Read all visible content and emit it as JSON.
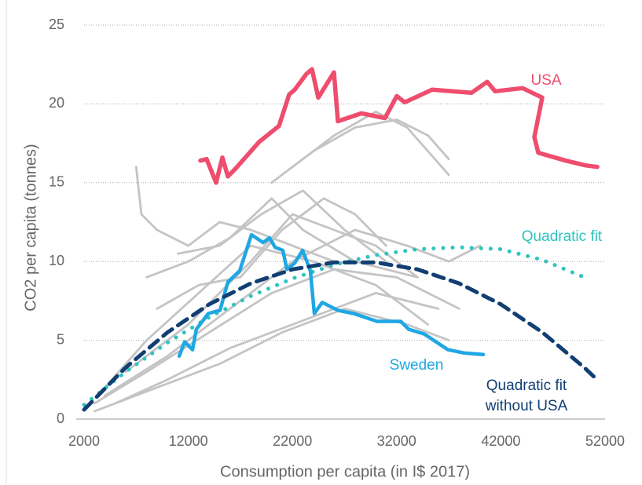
{
  "chart_data": {
    "type": "line",
    "xlabel": "Consumption per capita (in I$ 2017)",
    "ylabel": "CO2 per capita (tonnes)",
    "xlim": [
      2000,
      52000
    ],
    "xticks": [
      2000,
      12000,
      22000,
      32000,
      42000,
      52000
    ],
    "ylim": [
      0,
      25
    ],
    "yticks": [
      0,
      5,
      10,
      15,
      20,
      25
    ],
    "grid": true,
    "series": [
      {
        "color": "#c4c4c4",
        "x": [
          7000,
          7500,
          9000,
          12000,
          15000,
          18000,
          22000,
          26000
        ],
        "values": [
          16,
          13,
          12,
          11,
          12.5,
          12,
          11,
          10
        ]
      },
      {
        "color": "#c4c4c4",
        "x": [
          20000,
          24000,
          28000,
          32000,
          35000,
          37000
        ],
        "values": [
          15,
          17,
          18.5,
          19,
          18,
          16.5
        ]
      },
      {
        "color": "#c4c4c4",
        "x": [
          22000,
          26000,
          30000,
          33000,
          37000
        ],
        "values": [
          16,
          18,
          19.5,
          18.5,
          15.5
        ]
      },
      {
        "color": "#c4c4c4",
        "x": [
          3000,
          8000,
          14000,
          20000,
          26000,
          32000,
          38000
        ],
        "values": [
          1,
          3,
          5.5,
          8,
          9.5,
          9,
          7
        ]
      },
      {
        "color": "#c4c4c4",
        "x": [
          4000,
          10000,
          16000,
          22000,
          28000,
          33000,
          37000,
          40000
        ],
        "values": [
          1.5,
          4,
          7,
          10,
          12,
          11,
          10,
          11
        ]
      },
      {
        "color": "#c4c4c4",
        "x": [
          6000,
          12000,
          18000,
          22000,
          26000,
          30000,
          34000
        ],
        "values": [
          3,
          6,
          10,
          13,
          12,
          11,
          9
        ]
      },
      {
        "color": "#c4c4c4",
        "x": [
          3000,
          9000,
          15000,
          21000,
          27000,
          33000,
          37000
        ],
        "values": [
          0.5,
          2,
          3.5,
          5.5,
          7,
          6,
          5
        ]
      },
      {
        "color": "#c4c4c4",
        "x": [
          8000,
          12000,
          16000,
          20000,
          23000,
          28000,
          34000
        ],
        "values": [
          9,
          10,
          11.5,
          14,
          12,
          10,
          9
        ]
      },
      {
        "color": "#c4c4c4",
        "x": [
          5000,
          10000,
          16000,
          24000,
          30000,
          36000
        ],
        "values": [
          1,
          2.5,
          4.5,
          6.5,
          8,
          7
        ]
      },
      {
        "color": "#c4c4c4",
        "x": [
          9000,
          13000,
          17000,
          21000,
          25000,
          28000,
          31000
        ],
        "values": [
          7,
          8.5,
          9,
          12,
          14,
          13,
          11
        ]
      },
      {
        "color": "#c4c4c4",
        "x": [
          4000,
          8000,
          13000,
          18000,
          24000,
          30000,
          35000
        ],
        "values": [
          2,
          5,
          8,
          11,
          10,
          8.5,
          6
        ]
      },
      {
        "color": "#c4c4c4",
        "x": [
          11000,
          15000,
          19000,
          23000,
          27000,
          31000
        ],
        "values": [
          10.5,
          11,
          13,
          14.5,
          12,
          10
        ]
      },
      {
        "name": "Quadratic fit",
        "color": "#2ec4c0",
        "dash": "dotted",
        "x": [
          2000,
          6000,
          10000,
          14000,
          18000,
          22000,
          26000,
          30000,
          34000,
          38000,
          42000,
          46000,
          50000
        ],
        "values": [
          0.9,
          3.0,
          4.85,
          6.46,
          7.81,
          8.92,
          9.79,
          10.41,
          10.78,
          10.9,
          10.78,
          10.1,
          9.0
        ]
      },
      {
        "name": "Sweden",
        "color": "#1ea7e4",
        "x": [
          11130,
          11650,
          12410,
          12780,
          13920,
          15050,
          15800,
          16930,
          18060,
          19190,
          19800,
          20330,
          21080,
          21460,
          22210,
          22970,
          23720,
          24100,
          24850,
          26360,
          27870,
          30130,
          32390,
          33150,
          34650,
          36920,
          38430,
          40310
        ],
        "values": [
          4.0,
          4.9,
          4.4,
          5.7,
          6.7,
          6.9,
          8.7,
          9.4,
          11.7,
          11.2,
          11.5,
          10.9,
          10.7,
          9.5,
          9.9,
          10.7,
          9.4,
          6.7,
          7.4,
          6.9,
          6.7,
          6.2,
          6.2,
          5.7,
          5.4,
          4.4,
          4.2,
          4.1
        ]
      },
      {
        "name": "Quadratic fit without USA",
        "color": "#123f73",
        "dash": "dashed",
        "x": [
          2000,
          6000,
          10000,
          14000,
          18000,
          22000,
          26000,
          30000,
          34000,
          38000,
          42000,
          46000,
          50000,
          51000
        ],
        "values": [
          0.6,
          3.27,
          5.5,
          7.28,
          8.61,
          9.5,
          9.94,
          9.94,
          9.5,
          8.61,
          7.28,
          5.5,
          3.27,
          2.65
        ]
      },
      {
        "name": "USA",
        "color": "#ee4d6e",
        "x": [
          13160,
          13760,
          14670,
          15270,
          15800,
          16550,
          18820,
          20700,
          21680,
          22210,
          23340,
          23870,
          24470,
          25980,
          26360,
          28620,
          30880,
          32010,
          32770,
          35410,
          39180,
          40690,
          41440,
          44080,
          45970,
          45210,
          45590,
          48230,
          50110,
          51250
        ],
        "values": [
          16.4,
          16.5,
          15.0,
          16.6,
          15.4,
          15.9,
          17.6,
          18.6,
          20.6,
          20.9,
          21.9,
          22.2,
          20.4,
          22.0,
          18.9,
          19.4,
          19.1,
          20.5,
          20.1,
          20.9,
          20.7,
          21.4,
          20.8,
          21.0,
          20.4,
          17.9,
          16.9,
          16.4,
          16.1,
          16.0
        ]
      }
    ]
  }
}
